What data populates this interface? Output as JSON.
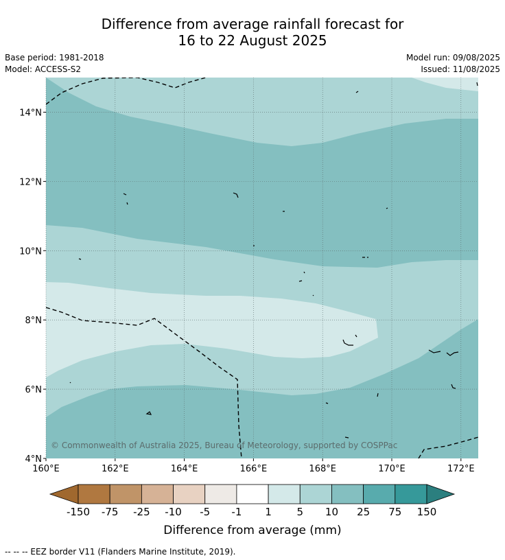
{
  "title": {
    "line1": "Difference from average rainfall forecast for",
    "line2": "16 to 22 August 2025"
  },
  "meta": {
    "base_period": "Base period: 1981-2018",
    "model": "Model: ACCESS-S2",
    "model_run": "Model run: 09/08/2025",
    "issued": "Issued: 11/08/2025"
  },
  "map": {
    "lon_range": [
      160,
      172.5
    ],
    "lat_range": [
      4,
      15
    ],
    "x_ticks": [
      "160°E",
      "162°E",
      "164°E",
      "166°E",
      "168°E",
      "170°E",
      "172°E"
    ],
    "y_ticks": [
      "14°N",
      "12°N",
      "10°N",
      "8°N",
      "6°N",
      "4°N"
    ],
    "copyright": "© Commonwealth of Australia 2025, Bureau of Meteorology, supported by COSPPac",
    "region_colors": [
      "#84bfc0",
      "#acd5d5",
      "#d4e9e9"
    ]
  },
  "colorbar": {
    "label": "Difference from average (mm)",
    "ticks": [
      "-150",
      "-75",
      "-25",
      "-10",
      "-5",
      "-1",
      "1",
      "5",
      "10",
      "25",
      "75",
      "150"
    ],
    "colors": [
      "#a0682e",
      "#b07840",
      "#c09468",
      "#d6b296",
      "#e8d2c2",
      "#eeeae6",
      "#ffffff",
      "#d4e9e9",
      "#acd5d5",
      "#84bfc0",
      "#58abad",
      "#36999a",
      "#2b7f7f"
    ]
  },
  "footer": {
    "legend_text": "--  --  -- EEZ border V11 (Flanders Marine Institute, 2019)."
  }
}
